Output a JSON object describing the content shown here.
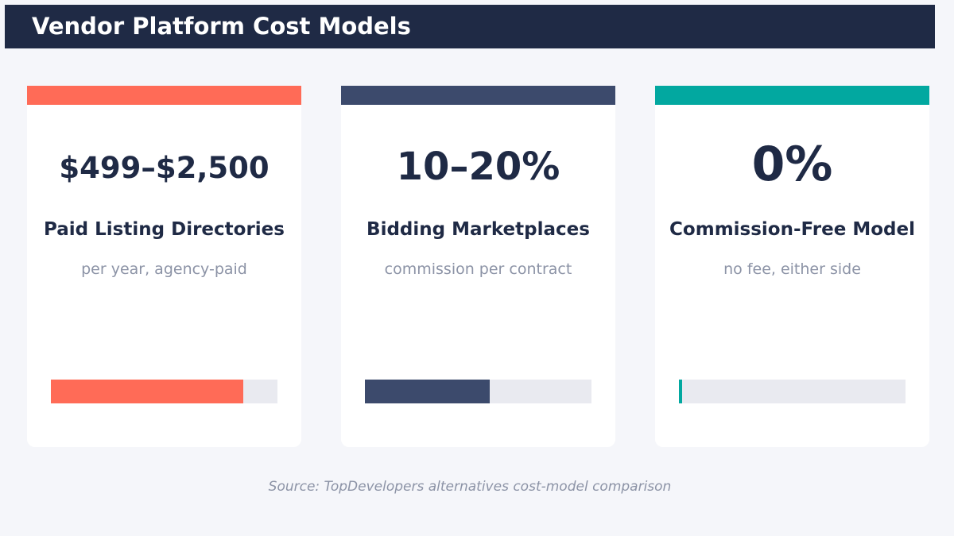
{
  "title": "Vendor Platform Cost Models",
  "source": "Source: TopDevelopers alternatives cost-model comparison",
  "chart_data": {
    "type": "bar",
    "categories": [
      "Paid Listing Directories",
      "Bidding Marketplaces",
      "Commission-Free Model"
    ],
    "cards": [
      {
        "value_text": "$499–$2,500",
        "label": "Paid Listing Directories",
        "sub": "per year, agency-paid",
        "color": "#ff6b57",
        "fill_fraction": 0.85
      },
      {
        "value_text": "10–20%",
        "label": "Bidding Marketplaces",
        "sub": "commission per contract",
        "color": "#3c4a6c",
        "fill_fraction": 0.55
      },
      {
        "value_text": "0%",
        "label": "Commission-Free Model",
        "sub": "no fee, either side",
        "color": "#02a8a0",
        "fill_fraction": 0.015
      }
    ]
  }
}
